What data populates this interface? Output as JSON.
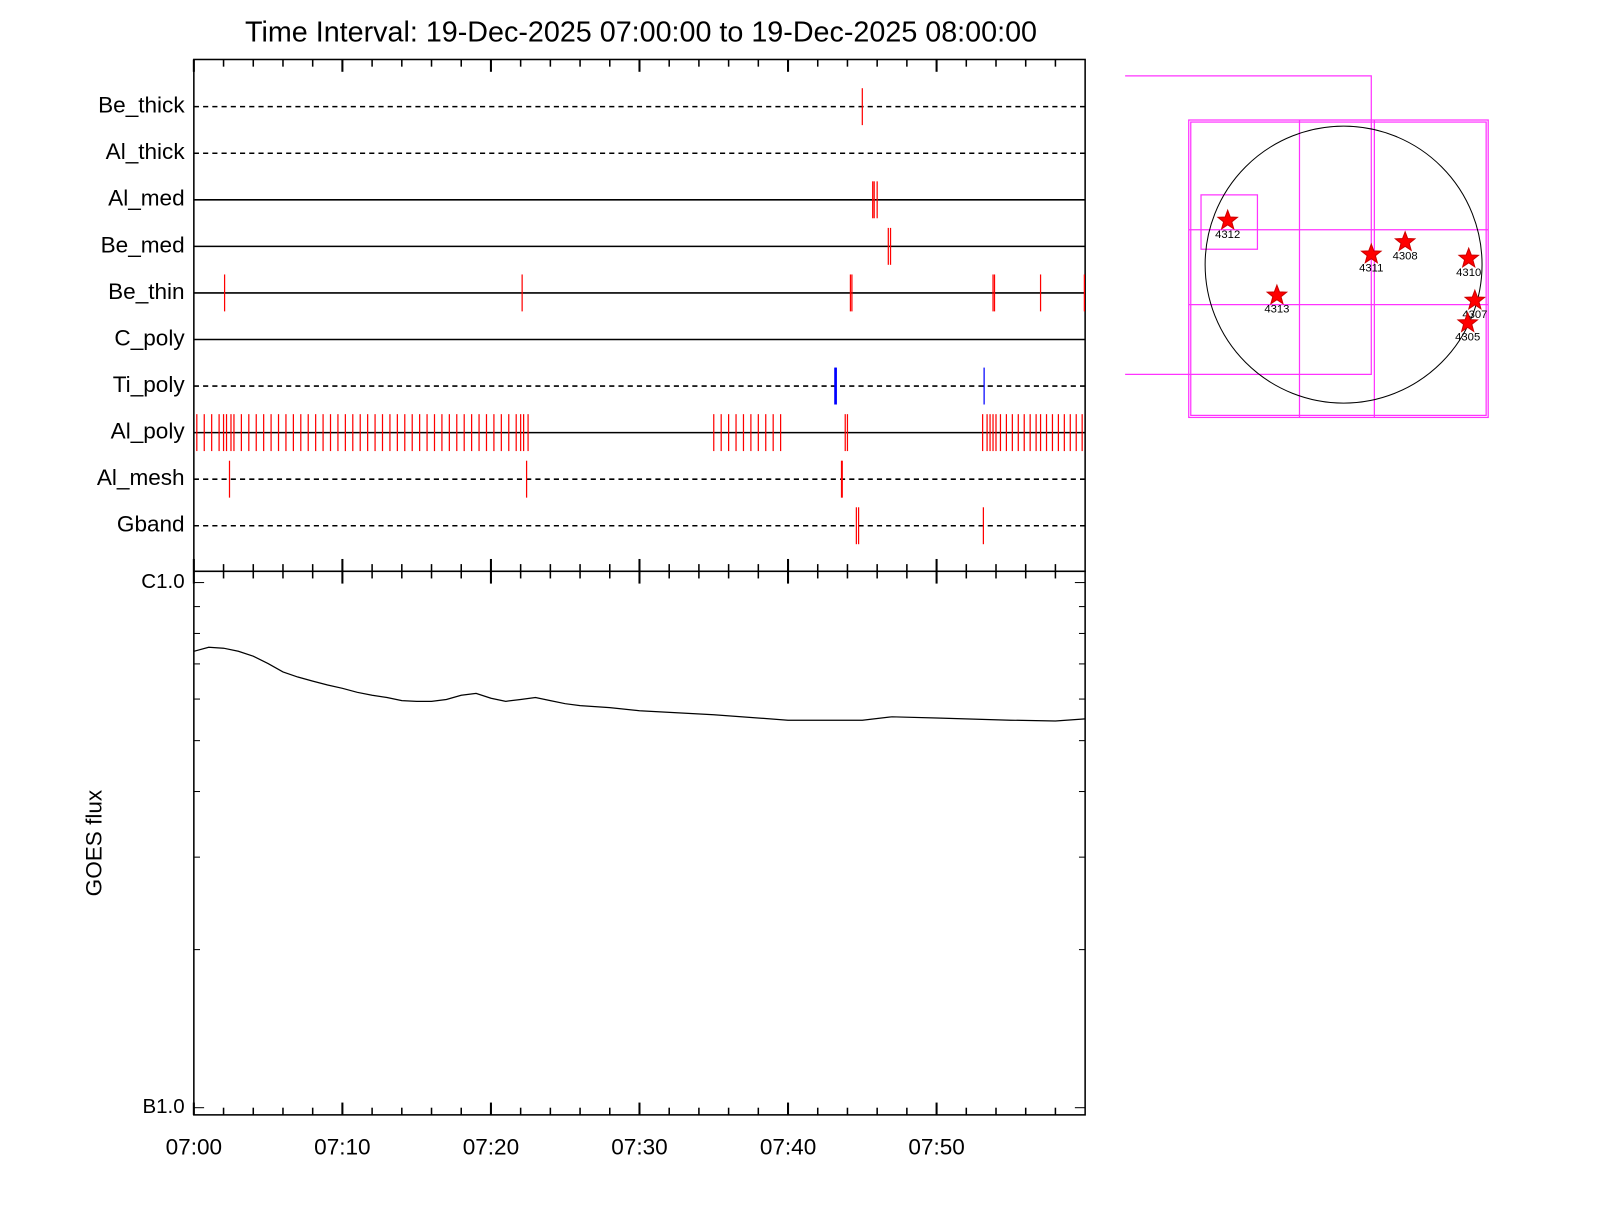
{
  "chart_data": [
    {
      "type": "event",
      "title": "Time Interval: 19-Dec-2025 07:00:00 to 19-Dec-2025 08:00:00",
      "xlim": [
        0,
        60
      ],
      "filters": [
        {
          "name": "Be_thick",
          "line": "dashed",
          "color": "#ff0000",
          "events": [
            45.0
          ]
        },
        {
          "name": "Al_thick",
          "line": "dashed",
          "color": "#ff0000",
          "events": []
        },
        {
          "name": "Al_med",
          "line": "solid",
          "color": "#ff0000",
          "events": [
            45.7,
            45.8,
            46.0
          ]
        },
        {
          "name": "Be_med",
          "line": "solid",
          "color": "#ff0000",
          "events": [
            46.75,
            46.9
          ]
        },
        {
          "name": "Be_thin",
          "line": "solid",
          "color": "#ff0000",
          "events": [
            2.07,
            22.1,
            44.2,
            44.3,
            53.8,
            53.9,
            57.0,
            59.95
          ]
        },
        {
          "name": "C_poly",
          "line": "solid",
          "color": "#ff0000",
          "events": []
        },
        {
          "name": "Ti_poly",
          "line": "dashed",
          "color": "#0000ff",
          "events": [
            43.15,
            43.2,
            43.25,
            53.2
          ]
        },
        {
          "name": "Al_poly",
          "line": "solid",
          "color": "#ff0000",
          "events": [
            0.2,
            0.7,
            1.2,
            1.7,
            2.0,
            2.2,
            2.5,
            2.7,
            3.2,
            3.7,
            4.2,
            4.7,
            5.2,
            5.7,
            6.2,
            6.7,
            7.2,
            7.7,
            8.2,
            8.7,
            9.2,
            9.7,
            10.2,
            10.7,
            11.2,
            11.7,
            12.2,
            12.7,
            13.2,
            13.7,
            14.2,
            14.7,
            15.2,
            15.7,
            16.2,
            16.7,
            17.2,
            17.7,
            18.2,
            18.7,
            19.2,
            19.7,
            20.2,
            20.7,
            21.2,
            21.7,
            22.0,
            22.2,
            22.5,
            35.0,
            35.5,
            36.0,
            36.5,
            37.0,
            37.5,
            38.0,
            38.5,
            39.0,
            39.5,
            43.85,
            44.0,
            53.1,
            53.4,
            53.6,
            53.8,
            54.0,
            54.3,
            54.7,
            55.1,
            55.5,
            55.9,
            56.3,
            56.7,
            57.0,
            57.4,
            57.8,
            58.2,
            58.6,
            59.0,
            59.4,
            59.8
          ]
        },
        {
          "name": "Al_mesh",
          "line": "dashed",
          "color": "#ff0000",
          "events": [
            2.4,
            22.4,
            43.6,
            43.65
          ]
        },
        {
          "name": "Gband",
          "line": "dashed",
          "color": "#ff0000",
          "events": [
            44.6,
            44.75,
            53.15
          ]
        }
      ]
    },
    {
      "type": "line",
      "y_label": "GOES flux",
      "log_y": true,
      "color": "#000000",
      "xlim": [
        0,
        60
      ],
      "xticks": [
        {
          "value": 0,
          "label": "07:00"
        },
        {
          "value": 10,
          "label": "07:10"
        },
        {
          "value": 20,
          "label": "07:20"
        },
        {
          "value": 30,
          "label": "07:30"
        },
        {
          "value": 40,
          "label": "07:40"
        },
        {
          "value": 50,
          "label": "07:50"
        }
      ],
      "ylim": [
        1e-07,
        1e-06
      ],
      "yticks": [
        {
          "value": 1e-06,
          "label": "C1.0"
        },
        {
          "value": 1e-07,
          "label": "B1.0"
        }
      ],
      "x": [
        0,
        1,
        2,
        3,
        4,
        5,
        6,
        7,
        8,
        9,
        10,
        11,
        12,
        13,
        14,
        15,
        16,
        17,
        18,
        19,
        20,
        21,
        22,
        23,
        24,
        25,
        26,
        28,
        30,
        35,
        40,
        45,
        47,
        50,
        55,
        58,
        60
      ],
      "values": [
        7.4e-07,
        7.53e-07,
        7.5e-07,
        7.4e-07,
        7.24e-07,
        7.01e-07,
        6.76e-07,
        6.61e-07,
        6.49e-07,
        6.38e-07,
        6.29e-07,
        6.18e-07,
        6.1e-07,
        6.04e-07,
        5.96e-07,
        5.94e-07,
        5.94e-07,
        5.99e-07,
        6.1e-07,
        6.15e-07,
        6.02e-07,
        5.94e-07,
        5.99e-07,
        6.04e-07,
        5.96e-07,
        5.88e-07,
        5.83e-07,
        5.78e-07,
        5.7e-07,
        5.6e-07,
        5.47e-07,
        5.47e-07,
        5.55e-07,
        5.52e-07,
        5.47e-07,
        5.45e-07,
        5.5e-07
      ]
    }
  ],
  "sun_map": {
    "regions": [
      {
        "label": "4312"
      },
      {
        "label": "4311"
      },
      {
        "label": "4308"
      },
      {
        "label": "4310"
      },
      {
        "label": "4313"
      },
      {
        "label": "4307"
      },
      {
        "label": "4305"
      }
    ]
  }
}
